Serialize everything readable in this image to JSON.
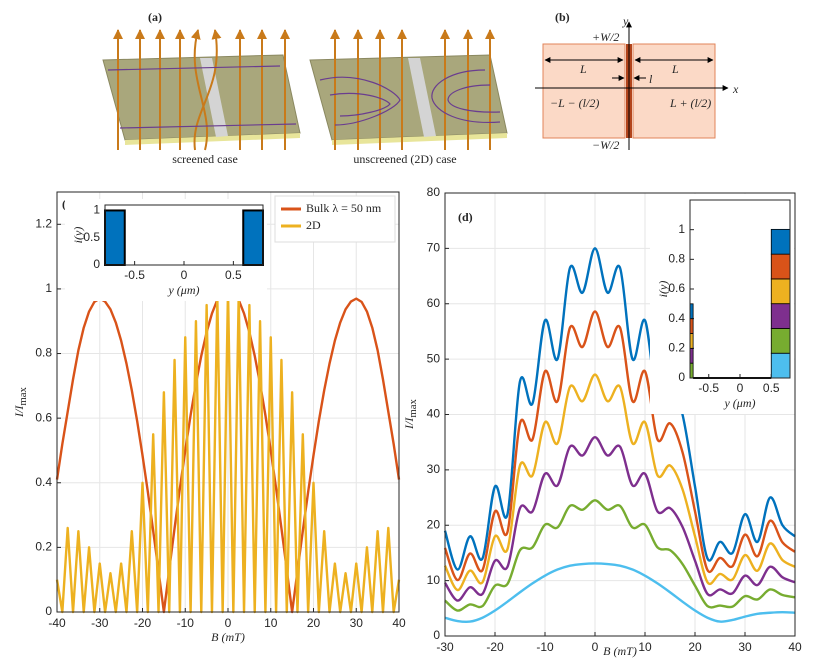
{
  "figure_a": {
    "label": "(a)",
    "caption_left": "screened case",
    "caption_right": "unscreened (2D) case"
  },
  "figure_b": {
    "label": "(b)",
    "y_axis": "y",
    "x_axis": "x",
    "top": "+W/2",
    "bottom": "−W/2",
    "left_width": "L",
    "right_width": "L",
    "gap": "l",
    "left_edge": "−L − (l/2)",
    "right_edge": "L + (l/2)"
  },
  "chart_data": [
    {
      "type": "line",
      "panel_label": "(c)",
      "xlabel": "B (mT)",
      "ylabel": {
        "main": "I/I",
        "sub": "max"
      },
      "x": [
        -40,
        -38.75,
        -37.5,
        -36.25,
        -35,
        -33.75,
        -32.5,
        -31.25,
        -30,
        -28.75,
        -27.5,
        -26.25,
        -25,
        -23.75,
        -22.5,
        -21.25,
        -20,
        -18.75,
        -17.5,
        -16.25,
        -15,
        -13.75,
        -12.5,
        -11.25,
        -10,
        -8.75,
        -7.5,
        -6.25,
        -5,
        -3.75,
        -2.5,
        -1.25,
        0,
        1.25,
        2.5,
        3.75,
        5,
        6.25,
        7.5,
        8.75,
        10,
        11.25,
        12.5,
        13.75,
        15,
        16.25,
        17.5,
        18.75,
        20,
        21.25,
        22.5,
        23.75,
        25,
        26.25,
        27.5,
        28.75,
        30,
        31.25,
        32.5,
        33.75,
        35,
        36.25,
        37.5,
        38.75,
        40
      ],
      "xlim": [
        -40,
        40
      ],
      "ylim": [
        0,
        1.3
      ],
      "xticks": [
        -40,
        -30,
        -20,
        -10,
        0,
        10,
        20,
        30,
        40
      ],
      "yticks": [
        0,
        0.2,
        0.4,
        0.6,
        0.8,
        1,
        1.2
      ],
      "grid": true,
      "legend": "upper right",
      "series": [
        {
          "name": "Bulk λ = 50 nm",
          "color": "#d95319",
          "values": [
            0.41,
            0.52,
            0.62,
            0.72,
            0.81,
            0.88,
            0.93,
            0.96,
            0.97,
            0.961,
            0.937,
            0.896,
            0.84,
            0.769,
            0.686,
            0.591,
            0.485,
            0.372,
            0.251,
            0.127,
            0,
            0.131,
            0.259,
            0.383,
            0.5,
            0.609,
            0.707,
            0.793,
            0.866,
            0.924,
            0.966,
            0.991,
            1,
            0.991,
            0.966,
            0.924,
            0.866,
            0.793,
            0.707,
            0.609,
            0.5,
            0.383,
            0.259,
            0.131,
            0,
            0.127,
            0.251,
            0.372,
            0.485,
            0.591,
            0.686,
            0.769,
            0.84,
            0.896,
            0.937,
            0.961,
            0.97,
            0.96,
            0.93,
            0.88,
            0.81,
            0.72,
            0.62,
            0.52,
            0.41
          ]
        },
        {
          "name": "2D",
          "color": "#edb120",
          "values": [
            0.1,
            0,
            0.26,
            0,
            0.25,
            0,
            0.2,
            0,
            0.15,
            0,
            0.12,
            0,
            0.15,
            0,
            0.25,
            0,
            0.4,
            0,
            0.55,
            0,
            0.68,
            0,
            0.78,
            0,
            0.85,
            0,
            0.9,
            0,
            0.95,
            0,
            0.98,
            0,
            1,
            0,
            0.98,
            0,
            0.95,
            0,
            0.9,
            0,
            0.85,
            0,
            0.78,
            0,
            0.68,
            0,
            0.55,
            0,
            0.4,
            0,
            0.25,
            0,
            0.15,
            0,
            0.12,
            0,
            0.15,
            0,
            0.2,
            0,
            0.25,
            0,
            0.26,
            0,
            0.1
          ]
        }
      ],
      "inset": {
        "type": "histogram",
        "xlabel": "y (μm)",
        "ylabel": "i(y)",
        "bins": [
          -0.8,
          -0.6,
          0.6,
          0.8
        ],
        "values": [
          1,
          0,
          1
        ],
        "color": "#0072bd",
        "xlim": [
          -0.8,
          0.8
        ],
        "ylim": [
          0,
          1.1
        ],
        "xticks": [
          -0.5,
          0,
          0.5
        ],
        "yticks": [
          0,
          0.5,
          1
        ]
      }
    },
    {
      "type": "line",
      "panel_label": "(d)",
      "xlabel": "B (mT)",
      "ylabel": {
        "main": "I/I",
        "sub": "max"
      },
      "x": [
        -30,
        -27.5,
        -25,
        -22.5,
        -20,
        -17.5,
        -15,
        -12.5,
        -10,
        -7.5,
        -5,
        -2.5,
        0,
        2.5,
        5,
        7.5,
        10,
        12.5,
        15,
        17.5,
        20,
        22.5,
        25,
        27.5,
        30,
        32.5,
        35,
        37.5,
        40
      ],
      "xlim": [
        -30,
        40
      ],
      "ylim": [
        0,
        80
      ],
      "xticks": [
        -30,
        -20,
        -10,
        0,
        10,
        20,
        30,
        40
      ],
      "yticks": [
        0,
        10,
        20,
        30,
        40,
        50,
        60,
        70,
        80
      ],
      "grid": true,
      "smooth": true,
      "series": [
        {
          "color": "#0072bd",
          "values": [
            19,
            12,
            18,
            14,
            27,
            22,
            46,
            42,
            57,
            50,
            66.5,
            62,
            70,
            62,
            66.5,
            50,
            57,
            42,
            46,
            40,
            27,
            14,
            17,
            15,
            22,
            17,
            25,
            20,
            18
          ]
        },
        {
          "color": "#d95319",
          "values": [
            15.9,
            10.1,
            14.9,
            11.9,
            22.5,
            18.8,
            38.4,
            35.5,
            47.8,
            42.4,
            55.7,
            52.2,
            58.6,
            52.2,
            55.7,
            42.4,
            47.8,
            35.5,
            38.4,
            33.2,
            22.5,
            11.9,
            14.1,
            12.6,
            18.3,
            14.4,
            20.8,
            16.9,
            15.2
          ]
        },
        {
          "color": "#edb120",
          "values": [
            12.7,
            8.3,
            11.8,
            9.7,
            18.0,
            15.7,
            30.8,
            29.0,
            38.6,
            34.8,
            45.0,
            42.4,
            47.2,
            42.4,
            45.0,
            34.8,
            38.6,
            29.0,
            30.8,
            26.5,
            18.0,
            9.7,
            11.2,
            10.2,
            14.6,
            11.8,
            16.7,
            13.7,
            12.5
          ]
        },
        {
          "color": "#7e2f8e",
          "values": [
            9.6,
            6.4,
            8.8,
            7.6,
            13.6,
            12.5,
            23.1,
            22.5,
            29.3,
            27.2,
            34.2,
            32.6,
            35.9,
            32.6,
            34.2,
            27.2,
            29.3,
            22.5,
            23.1,
            19.7,
            13.6,
            7.6,
            8.4,
            7.7,
            10.9,
            9.2,
            12.5,
            10.6,
            9.7
          ]
        },
        {
          "color": "#77ac30",
          "values": [
            6.4,
            4.6,
            5.7,
            5.4,
            9.1,
            9.4,
            15.5,
            16.0,
            20.1,
            19.6,
            23.5,
            22.8,
            24.5,
            22.8,
            23.5,
            19.6,
            20.1,
            16.0,
            15.5,
            13.0,
            9.1,
            5.4,
            5.5,
            5.3,
            7.2,
            6.6,
            8.4,
            7.4,
            7.0
          ]
        },
        {
          "color": "#4dbeee",
          "values": [
            3.3,
            2.7,
            2.6,
            3.3,
            4.6,
            6.2,
            7.9,
            9.5,
            10.9,
            12,
            12.7,
            13.0,
            13.1,
            13.0,
            12.7,
            12,
            10.9,
            9.5,
            7.9,
            6.2,
            4.6,
            3.3,
            2.6,
            2.9,
            3.5,
            4,
            4.2,
            4.3,
            4.2
          ]
        }
      ],
      "inset": {
        "type": "stacked_bar",
        "xlabel": "y (μm)",
        "ylabel": "i(y)",
        "edges": [
          [
            -0.8,
            -0.75
          ],
          [
            0.5,
            0.8
          ]
        ],
        "series": [
          {
            "color": "#4dbeee",
            "values": [
              0,
              0.167
            ]
          },
          {
            "color": "#77ac30",
            "values": [
              0.1,
              0.167
            ]
          },
          {
            "color": "#7e2f8e",
            "values": [
              0.1,
              0.167
            ]
          },
          {
            "color": "#edb120",
            "values": [
              0.1,
              0.167
            ]
          },
          {
            "color": "#d95319",
            "values": [
              0.1,
              0.167
            ]
          },
          {
            "color": "#0072bd",
            "values": [
              0.1,
              0.167
            ]
          }
        ],
        "xlim": [
          -0.8,
          0.8
        ],
        "ylim": [
          0,
          1.2
        ],
        "xticks": [
          -0.5,
          0,
          0.5
        ],
        "yticks": [
          0,
          0.2,
          0.4,
          0.6,
          0.8,
          1
        ]
      }
    }
  ]
}
